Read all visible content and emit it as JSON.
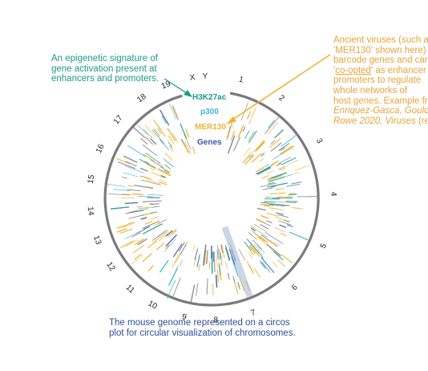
{
  "annotations": {
    "epigenetic": {
      "line1": "An epigenetic signature of",
      "line2": "gene activation present at",
      "line3": "enhancers and promoters."
    },
    "viruses": {
      "l1": "Ancient viruses (such a",
      "l2": "'MER130' shown here)",
      "l3": "barcode genes and car",
      "l4_pre": "'",
      "l4_link": "co-opted",
      "l4_post": "' as enhancer",
      "l5": "promoters to regulate",
      "l6": "whole networks of",
      "l7": "host genes. Example fr",
      "l8": "Enriquez-Gasca, Gould",
      "l9_it": "Rowe 2020, Viruses",
      "l9_post": " (re"
    },
    "circos": {
      "line1": "The mouse genome represented on a circos",
      "line2": "plot for circular visualization of chromosomes."
    }
  },
  "tracks": {
    "h3k27ac": "H3K27ac",
    "p300": "p300",
    "mer130": "MER130",
    "genes": "Genes"
  },
  "chromosomes": [
    "1",
    "2",
    "3",
    "4",
    "5",
    "6",
    "7",
    "8",
    "9",
    "10",
    "11",
    "12",
    "13",
    "14",
    "15",
    "16",
    "17",
    "18",
    "19",
    "X",
    "Y"
  ],
  "colors": {
    "ring": "#7a7a7a",
    "h3k27ac": "#1a9a8c",
    "p300": "#3fb3d6",
    "mer130": "#f2b233",
    "genes": "#3a57a5",
    "highlight": "#9fb6d6",
    "tick_gray": "#8a8a8a"
  }
}
